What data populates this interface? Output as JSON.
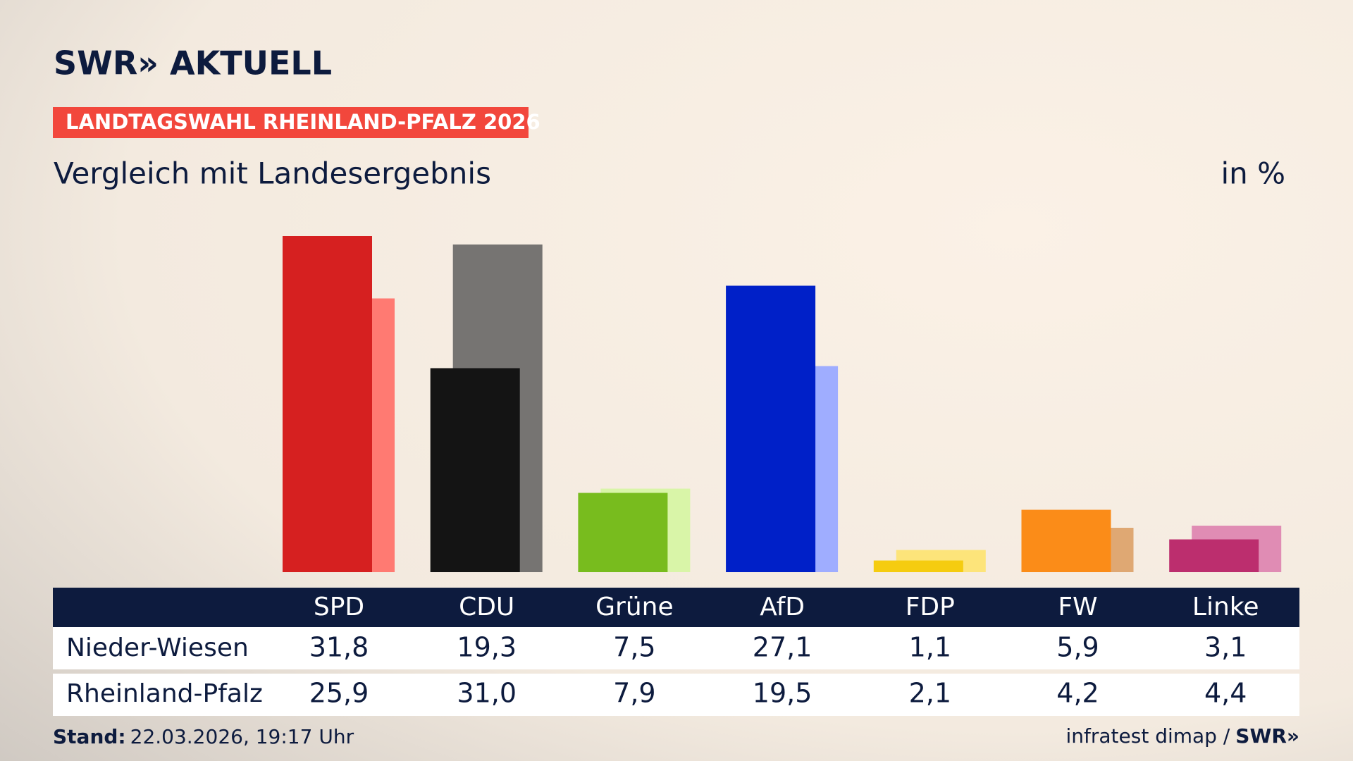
{
  "header": {
    "logo": "SWR» AKTUELL",
    "tag": "LANDTAGSWAHL RHEINLAND-PFALZ 2026",
    "subtitle": "Vergleich mit Landesergebnis",
    "unit": "in %"
  },
  "chart_data": {
    "type": "bar",
    "categories": [
      "SPD",
      "CDU",
      "Grüne",
      "AfD",
      "FDP",
      "FW",
      "Linke"
    ],
    "series": [
      {
        "name": "Nieder-Wiesen",
        "values": [
          31.8,
          19.3,
          7.5,
          27.1,
          1.1,
          5.9,
          3.1
        ],
        "value_labels": [
          "31,8",
          "19,3",
          "7,5",
          "27,1",
          "1,1",
          "5,9",
          "3,1"
        ],
        "colors": [
          "#d62020",
          "#141414",
          "#78bc1e",
          "#0020c8",
          "#f5cc10",
          "#fb8c18",
          "#bc2e6e"
        ]
      },
      {
        "name": "Rheinland-Pfalz",
        "values": [
          25.9,
          31.0,
          7.9,
          19.5,
          2.1,
          4.2,
          4.4
        ],
        "value_labels": [
          "25,9",
          "31,0",
          "7,9",
          "19,5",
          "2,1",
          "4,2",
          "4,4"
        ],
        "colors": [
          "#ff7a72",
          "#767472",
          "#d9f5a8",
          "#9fadff",
          "#fde47a",
          "#dfa873",
          "#e08cb4"
        ]
      }
    ]
  },
  "footer": {
    "stand_label": "Stand:",
    "stand": "22.03.2026, 19:17 Uhr",
    "source": "infratest dimap /",
    "brand": "SWR»"
  }
}
